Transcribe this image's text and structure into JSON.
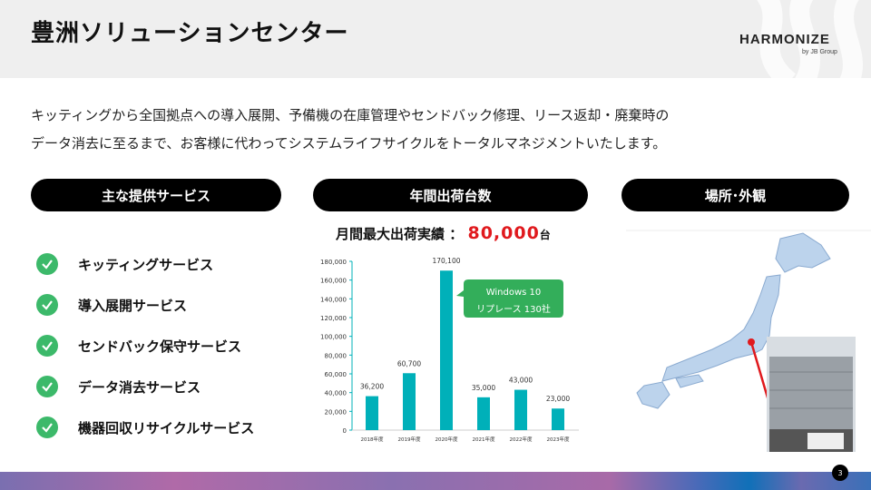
{
  "header": {
    "title": "豊洲ソリューションセンター",
    "logo": "HARMONIZE",
    "logo_sub": "by JB Group"
  },
  "intro": [
    "キッティングから全国拠点への導入展開、予備機の在庫管理やセンドバック修理、リース返却・廃棄時の",
    "データ消去に至るまで、お客様に代わってシステムライフサイクルをトータルマネジメントいたします。"
  ],
  "sections": {
    "services": "主な提供サービス",
    "shipments": "年間出荷台数",
    "location": "場所･外観"
  },
  "services": [
    {
      "label": "キッティングサービス",
      "icon": "check-circle-icon"
    },
    {
      "label": "導入展開サービス",
      "icon": "check-circle-icon"
    },
    {
      "label": "センドバック保守サービス",
      "icon": "check-circle-icon"
    },
    {
      "label": "データ消去サービス",
      "icon": "check-circle-icon"
    },
    {
      "label": "機器回収リサイクルサービス",
      "icon": "check-circle-icon"
    }
  ],
  "max_shipment": {
    "label": "月間最大出荷実績 ：",
    "value": "80,000",
    "unit": "台"
  },
  "colors": {
    "bar": "#00b0b9",
    "accent": "#e0191d",
    "check": "#3cb96a",
    "callout": "#33ae5a"
  },
  "chart_data": {
    "type": "bar",
    "categories": [
      "2018年度",
      "2019年度",
      "2020年度",
      "2021年度",
      "2022年度",
      "2023年度"
    ],
    "values": [
      36200,
      60700,
      170100,
      35000,
      43000,
      23000
    ],
    "data_labels": [
      "36,200",
      "60,700",
      "170,100",
      "35,000",
      "43,000",
      "23,000"
    ],
    "ylim": [
      0,
      180000
    ],
    "yticks": [
      "0",
      "20,000",
      "40,000",
      "60,000",
      "80,000",
      "100,000",
      "120,000",
      "140,000",
      "160,000",
      "180,000"
    ],
    "annotation": {
      "line1": "Windows 10",
      "line2": "リプレース 130社"
    }
  },
  "page_number": "3"
}
